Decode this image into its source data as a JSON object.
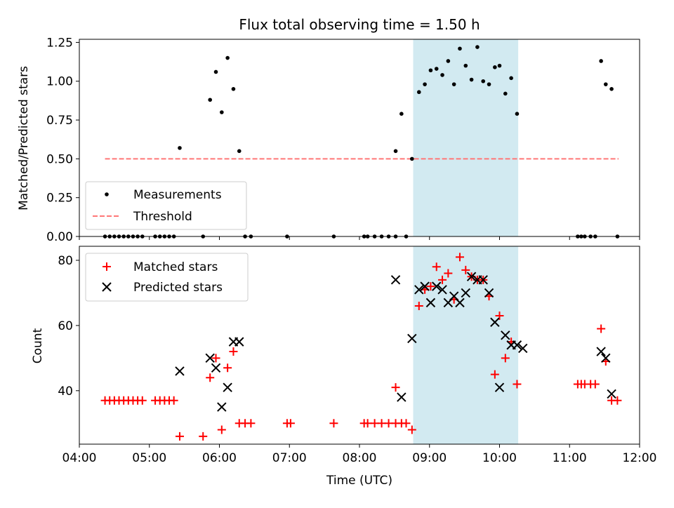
{
  "figure": {
    "title": "Flux total observing time = 1.50 h"
  },
  "chart_data": [
    {
      "type": "scatter",
      "ylabel": "Matched/Predicted stars",
      "xlabel": "",
      "xlim": [
        "04:00",
        "12:00"
      ],
      "ylim": [
        0,
        1.27
      ],
      "yticks": [
        "0.00",
        "0.25",
        "0.50",
        "0.75",
        "1.00",
        "1.25"
      ],
      "grid": false,
      "legend_position": "lower-left",
      "shaded_interval": {
        "start": "08:46",
        "end": "10:16",
        "color": "#add8e6"
      },
      "threshold": {
        "name": "Threshold",
        "y": 0.5,
        "x_start": "04:22",
        "x_end": "11:42",
        "color": "#ff7777"
      },
      "series": [
        {
          "name": "Measurements",
          "marker": "dot",
          "color": "#000000",
          "points": [
            [
              "04:22",
              0.0
            ],
            [
              "04:26",
              0.0
            ],
            [
              "04:30",
              0.0
            ],
            [
              "04:34",
              0.0
            ],
            [
              "04:38",
              0.0
            ],
            [
              "04:42",
              0.0
            ],
            [
              "04:46",
              0.0
            ],
            [
              "04:50",
              0.0
            ],
            [
              "04:54",
              0.0
            ],
            [
              "05:05",
              0.0
            ],
            [
              "05:09",
              0.0
            ],
            [
              "05:13",
              0.0
            ],
            [
              "05:17",
              0.0
            ],
            [
              "05:21",
              0.0
            ],
            [
              "05:26",
              0.57
            ],
            [
              "05:46",
              0.0
            ],
            [
              "05:52",
              0.88
            ],
            [
              "05:57",
              1.06
            ],
            [
              "06:02",
              0.8
            ],
            [
              "06:07",
              1.15
            ],
            [
              "06:12",
              0.95
            ],
            [
              "06:17",
              0.55
            ],
            [
              "06:22",
              0.0
            ],
            [
              "06:27",
              0.0
            ],
            [
              "06:58",
              0.0
            ],
            [
              "07:38",
              0.0
            ],
            [
              "08:04",
              0.0
            ],
            [
              "08:07",
              0.0
            ],
            [
              "08:13",
              0.0
            ],
            [
              "08:19",
              0.0
            ],
            [
              "08:25",
              0.0
            ],
            [
              "08:31",
              0.0
            ],
            [
              "08:31",
              0.55
            ],
            [
              "08:36",
              0.79
            ],
            [
              "08:40",
              0.0
            ],
            [
              "08:45",
              0.5
            ],
            [
              "08:51",
              0.93
            ],
            [
              "08:56",
              0.98
            ],
            [
              "09:01",
              1.07
            ],
            [
              "09:06",
              1.08
            ],
            [
              "09:11",
              1.04
            ],
            [
              "09:16",
              1.13
            ],
            [
              "09:21",
              0.98
            ],
            [
              "09:26",
              1.21
            ],
            [
              "09:31",
              1.1
            ],
            [
              "09:36",
              1.01
            ],
            [
              "09:41",
              1.22
            ],
            [
              "09:46",
              1.0
            ],
            [
              "09:51",
              0.98
            ],
            [
              "09:56",
              1.09
            ],
            [
              "10:00",
              1.1
            ],
            [
              "10:05",
              0.92
            ],
            [
              "10:10",
              1.02
            ],
            [
              "10:15",
              0.79
            ],
            [
              "11:07",
              0.0
            ],
            [
              "11:10",
              0.0
            ],
            [
              "11:13",
              0.0
            ],
            [
              "11:18",
              0.0
            ],
            [
              "11:22",
              0.0
            ],
            [
              "11:27",
              1.13
            ],
            [
              "11:31",
              0.98
            ],
            [
              "11:36",
              0.95
            ],
            [
              "11:41",
              0.0
            ]
          ]
        }
      ]
    },
    {
      "type": "scatter",
      "ylabel": "Count",
      "xlabel": "Time (UTC)",
      "xlim": [
        "04:00",
        "12:00"
      ],
      "ylim": [
        23.6,
        84.3
      ],
      "xticks": [
        "04:00",
        "05:00",
        "06:00",
        "07:00",
        "08:00",
        "09:00",
        "10:00",
        "11:00",
        "12:00"
      ],
      "yticks": [
        "40",
        "60",
        "80"
      ],
      "grid": false,
      "legend_position": "upper-left",
      "shaded_interval": {
        "start": "08:46",
        "end": "10:16",
        "color": "#add8e6"
      },
      "series": [
        {
          "name": "Matched stars",
          "marker": "plus",
          "color": "#ff0000",
          "points": [
            [
              "04:22",
              37
            ],
            [
              "04:26",
              37
            ],
            [
              "04:30",
              37
            ],
            [
              "04:34",
              37
            ],
            [
              "04:38",
              37
            ],
            [
              "04:42",
              37
            ],
            [
              "04:46",
              37
            ],
            [
              "04:50",
              37
            ],
            [
              "04:54",
              37
            ],
            [
              "05:05",
              37
            ],
            [
              "05:09",
              37
            ],
            [
              "05:13",
              37
            ],
            [
              "05:17",
              37
            ],
            [
              "05:21",
              37
            ],
            [
              "05:26",
              26
            ],
            [
              "05:46",
              26
            ],
            [
              "05:52",
              44
            ],
            [
              "05:57",
              50
            ],
            [
              "06:02",
              28
            ],
            [
              "06:07",
              47
            ],
            [
              "06:12",
              52
            ],
            [
              "06:17",
              30
            ],
            [
              "06:22",
              30
            ],
            [
              "06:27",
              30
            ],
            [
              "06:58",
              30
            ],
            [
              "07:01",
              30
            ],
            [
              "07:38",
              30
            ],
            [
              "08:04",
              30
            ],
            [
              "08:07",
              30
            ],
            [
              "08:13",
              30
            ],
            [
              "08:19",
              30
            ],
            [
              "08:25",
              30
            ],
            [
              "08:31",
              30
            ],
            [
              "08:31",
              41
            ],
            [
              "08:36",
              30
            ],
            [
              "08:40",
              30
            ],
            [
              "08:45",
              28
            ],
            [
              "08:51",
              66
            ],
            [
              "08:56",
              71
            ],
            [
              "09:01",
              72
            ],
            [
              "09:06",
              78
            ],
            [
              "09:11",
              74
            ],
            [
              "09:16",
              76
            ],
            [
              "09:21",
              68
            ],
            [
              "09:26",
              81
            ],
            [
              "09:31",
              77
            ],
            [
              "09:36",
              75
            ],
            [
              "09:41",
              74
            ],
            [
              "09:46",
              74
            ],
            [
              "09:51",
              69
            ],
            [
              "09:56",
              45
            ],
            [
              "10:00",
              63
            ],
            [
              "10:05",
              50
            ],
            [
              "10:10",
              55
            ],
            [
              "10:15",
              42
            ],
            [
              "11:07",
              42
            ],
            [
              "11:10",
              42
            ],
            [
              "11:13",
              42
            ],
            [
              "11:18",
              42
            ],
            [
              "11:22",
              42
            ],
            [
              "11:27",
              59
            ],
            [
              "11:31",
              49
            ],
            [
              "11:36",
              37
            ],
            [
              "11:41",
              37
            ]
          ]
        },
        {
          "name": "Predicted stars",
          "marker": "x",
          "color": "#000000",
          "points": [
            [
              "05:26",
              46
            ],
            [
              "05:52",
              50
            ],
            [
              "05:57",
              47
            ],
            [
              "06:02",
              35
            ],
            [
              "06:07",
              41
            ],
            [
              "06:12",
              55
            ],
            [
              "06:17",
              55
            ],
            [
              "08:31",
              74
            ],
            [
              "08:36",
              38
            ],
            [
              "08:45",
              56
            ],
            [
              "08:51",
              71
            ],
            [
              "08:56",
              72
            ],
            [
              "09:01",
              67
            ],
            [
              "09:06",
              72
            ],
            [
              "09:11",
              71
            ],
            [
              "09:16",
              67
            ],
            [
              "09:21",
              69
            ],
            [
              "09:26",
              67
            ],
            [
              "09:31",
              70
            ],
            [
              "09:36",
              75
            ],
            [
              "09:41",
              74
            ],
            [
              "09:46",
              74
            ],
            [
              "09:51",
              70
            ],
            [
              "09:56",
              61
            ],
            [
              "10:00",
              41
            ],
            [
              "10:05",
              57
            ],
            [
              "10:10",
              54
            ],
            [
              "10:15",
              54
            ],
            [
              "10:20",
              53
            ],
            [
              "11:27",
              52
            ],
            [
              "11:31",
              50
            ],
            [
              "11:36",
              39
            ]
          ]
        }
      ]
    }
  ]
}
